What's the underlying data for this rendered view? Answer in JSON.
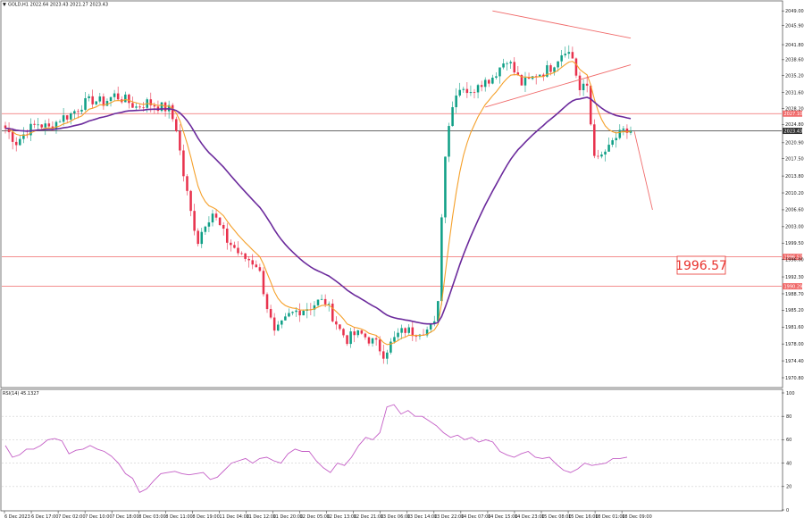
{
  "header": {
    "symbol_line": "GOLD,H1  2022.64 2023.43 2021.27 2023.43",
    "rsi_label": "RSI(14) 45.1327"
  },
  "colors": {
    "bull": "#0f9f86",
    "bear": "#e8324d",
    "ema_fast": "#f5a02a",
    "ema_slow": "#6b2a9c",
    "level_line": "#f06a6a",
    "current_line": "#333333",
    "triangle": "#f06a6a",
    "rsi_line": "#c45ec6",
    "grid": "#cfcfcf"
  },
  "icons": {
    "symbol_marker": "triangle-down-icon"
  },
  "callout": {
    "label": "1996.57"
  },
  "chart_data": [
    {
      "type": "candlestick",
      "title": "GOLD,H1",
      "ylim": [
        1970.8,
        2049.8
      ],
      "y_ticks": [
        "2049.00",
        "2045.90",
        "2041.80",
        "2038.60",
        "2035.20",
        "2031.60",
        "2028.20",
        "2024.80",
        "2020.90",
        "2017.50",
        "2013.80",
        "2010.20",
        "2006.60",
        "2003.00",
        "1999.50",
        "1996.00",
        "1992.30",
        "1988.70",
        "1985.20",
        "1981.60",
        "1978.00",
        "1974.40",
        "1970.80"
      ],
      "x_ticks": [
        "6 Dec 2023",
        "6 Dec 17:00",
        "7 Dec 02:00",
        "7 Dec 10:00",
        "7 Dec 18:00",
        "8 Dec 03:00",
        "8 Dec 11:00",
        "8 Dec 19:00",
        "11 Dec 04:00",
        "11 Dec 12:00",
        "11 Dec 20:00",
        "12 Dec 05:00",
        "12 Dec 13:00",
        "12 Dec 21:00",
        "13 Dec 06:00",
        "13 Dec 14:00",
        "13 Dec 22:00",
        "14 Dec 07:00",
        "14 Dec 15:00",
        "14 Dec 23:00",
        "15 Dec 08:00",
        "15 Dec 16:00",
        "18 Dec 01:00",
        "18 Dec 09:00"
      ],
      "levels": [
        {
          "value": 2027.1,
          "label": "2027.10"
        },
        {
          "value": 1996.57,
          "label": "1996.57"
        },
        {
          "value": 1990.29,
          "label": "1990.29"
        }
      ],
      "current_price": {
        "value": 2023.43,
        "label": "2023.43"
      },
      "pattern": "symmetrical triangle",
      "projection": "down",
      "close_path": [
        [
          0,
          2024
        ],
        [
          3,
          2021
        ],
        [
          6,
          2023.5
        ],
        [
          9,
          2025
        ],
        [
          12,
          2024
        ],
        [
          15,
          2026
        ],
        [
          18,
          2027
        ],
        [
          21,
          2029
        ],
        [
          24,
          2030
        ],
        [
          27,
          2029.5
        ],
        [
          30,
          2031
        ],
        [
          33,
          2030
        ],
        [
          36,
          2028.5
        ],
        [
          39,
          2029.5
        ],
        [
          42,
          2028.7
        ],
        [
          45,
          2028
        ],
        [
          47,
          2024
        ],
        [
          49,
          2014
        ],
        [
          51,
          2006
        ],
        [
          53,
          2000
        ],
        [
          55,
          2004
        ],
        [
          57,
          2006
        ],
        [
          59,
          2003
        ],
        [
          61,
          2000
        ],
        [
          63,
          1998.5
        ],
        [
          65,
          1996.5
        ],
        [
          67,
          1996
        ],
        [
          69,
          1995
        ],
        [
          70,
          1993
        ],
        [
          72,
          1986
        ],
        [
          74,
          1980
        ],
        [
          76,
          1982
        ],
        [
          78,
          1984
        ],
        [
          80,
          1985
        ],
        [
          82,
          1985.5
        ],
        [
          84,
          1986
        ],
        [
          86,
          1987
        ],
        [
          88,
          1987
        ],
        [
          90,
          1984
        ],
        [
          92,
          1981
        ],
        [
          94,
          1979
        ],
        [
          96,
          1980
        ],
        [
          98,
          1980
        ],
        [
          100,
          1979
        ],
        [
          102,
          1978
        ],
        [
          104,
          1976
        ],
        [
          106,
          1978
        ],
        [
          108,
          1980
        ],
        [
          110,
          1981
        ],
        [
          112,
          1980.5
        ],
        [
          114,
          1981
        ],
        [
          116,
          1981
        ],
        [
          118,
          1982
        ],
        [
          119,
          1988
        ],
        [
          120,
          2005
        ],
        [
          121,
          2019
        ],
        [
          122,
          2025
        ],
        [
          124,
          2032
        ],
        [
          126,
          2033
        ],
        [
          128,
          2031
        ],
        [
          130,
          2034
        ],
        [
          132,
          2034
        ],
        [
          134,
          2035
        ],
        [
          136,
          2037
        ],
        [
          138,
          2039
        ],
        [
          140,
          2036
        ],
        [
          142,
          2033.5
        ],
        [
          144,
          2034
        ],
        [
          146,
          2035.5
        ],
        [
          148,
          2036
        ],
        [
          150,
          2037
        ],
        [
          152,
          2039
        ],
        [
          154,
          2041
        ],
        [
          156,
          2039
        ],
        [
          158,
          2032
        ],
        [
          160,
          2033
        ],
        [
          161,
          2025
        ],
        [
          162,
          2019
        ],
        [
          163,
          2017
        ],
        [
          164,
          2018
        ],
        [
          165,
          2019
        ],
        [
          166,
          2019.5
        ],
        [
          167,
          2021
        ],
        [
          168,
          2022
        ],
        [
          169,
          2022.5
        ],
        [
          170,
          2023
        ],
        [
          171,
          2023.2
        ],
        [
          172,
          2023.43
        ]
      ]
    },
    {
      "type": "line",
      "title": "RSI(14)",
      "ylim": [
        0,
        100
      ],
      "y_ticks": [
        "100",
        "80",
        "60",
        "40",
        "20",
        "0"
      ],
      "values": [
        55,
        45,
        47,
        52,
        52,
        55,
        60,
        61,
        59,
        48,
        51,
        52,
        55,
        52,
        50,
        46,
        40,
        31,
        27,
        15,
        18,
        25,
        31,
        32,
        33,
        31,
        30,
        31,
        32,
        26,
        28,
        34,
        40,
        42,
        44,
        40,
        44,
        45,
        42,
        40,
        48,
        52,
        50,
        50,
        42,
        36,
        32,
        40,
        38,
        45,
        55,
        62,
        60,
        66,
        88,
        90,
        82,
        85,
        80,
        80,
        76,
        72,
        66,
        62,
        64,
        60,
        62,
        58,
        60,
        58,
        50,
        47,
        45,
        48,
        50,
        45,
        44,
        45,
        39,
        34,
        32,
        35,
        40,
        38,
        39,
        40,
        44,
        44,
        45.13
      ]
    }
  ]
}
